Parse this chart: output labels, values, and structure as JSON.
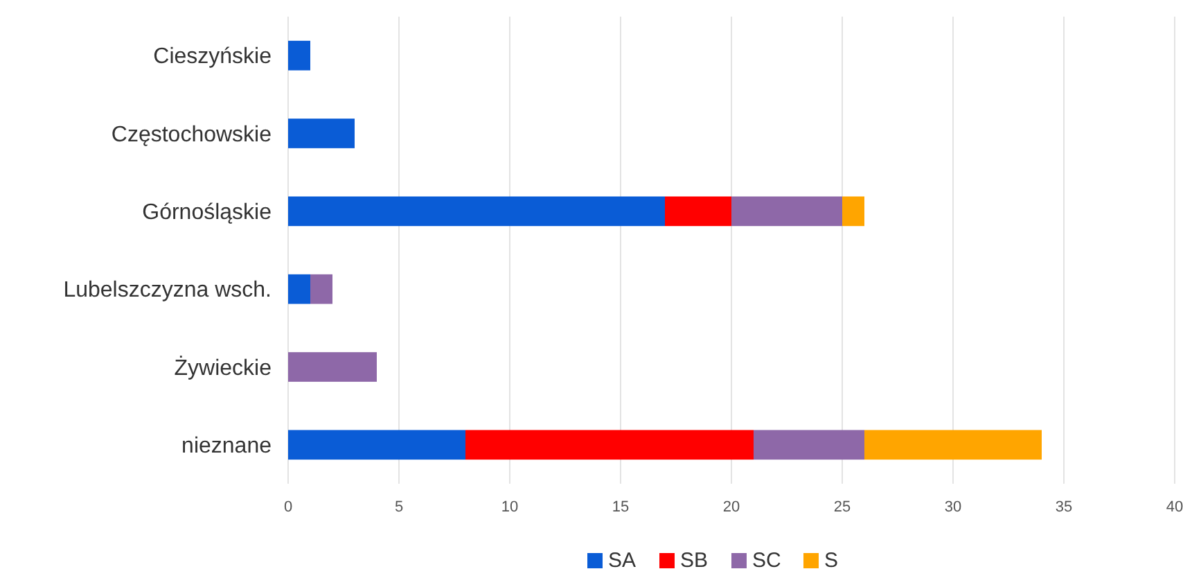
{
  "chart_data": {
    "type": "bar",
    "orientation": "horizontal",
    "stacked": true,
    "categories": [
      "Cieszyńskie",
      "Częstochowskie",
      "Górnośląskie",
      "Lubelszczyzna wsch.",
      "Żywieckie",
      "nieznane"
    ],
    "series": [
      {
        "name": "SA",
        "color": "#0a5cd6",
        "values": [
          1,
          3,
          17,
          1,
          0,
          8
        ]
      },
      {
        "name": "SB",
        "color": "#ff0000",
        "values": [
          0,
          0,
          3,
          0,
          0,
          13
        ]
      },
      {
        "name": "SC",
        "color": "#8e68a8",
        "values": [
          0,
          0,
          5,
          1,
          4,
          5
        ]
      },
      {
        "name": "S",
        "color": "#ffa500",
        "values": [
          0,
          0,
          1,
          0,
          0,
          8
        ]
      }
    ],
    "xlim": [
      0,
      40
    ],
    "xticks": [
      0,
      5,
      10,
      15,
      20,
      25,
      30,
      35,
      40
    ],
    "grid": "x",
    "legend": "bottom"
  }
}
